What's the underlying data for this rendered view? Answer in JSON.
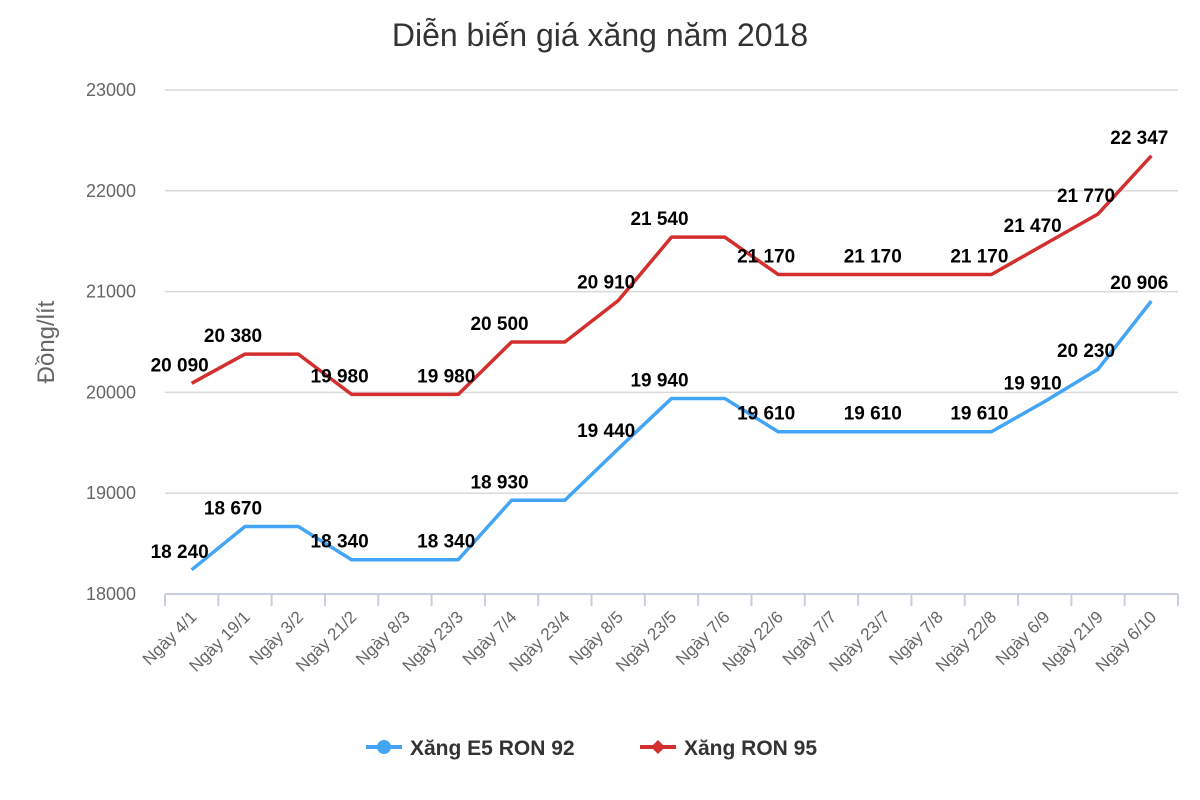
{
  "chart_data": {
    "type": "line",
    "title": "Diễn biến giá xăng năm 2018",
    "xlabel": "",
    "ylabel": "Đồng/lít",
    "ylim": [
      18000,
      23000
    ],
    "yticks": [
      18000,
      19000,
      20000,
      21000,
      22000,
      23000
    ],
    "grid": true,
    "legend": "bottom",
    "categories": [
      "Ngày 4/1",
      "Ngày 19/1",
      "Ngày 3/2",
      "Ngày 21/2",
      "Ngày 8/3",
      "Ngày 23/3",
      "Ngày 7/4",
      "Ngày 23/4",
      "Ngày 8/5",
      "Ngày 23/5",
      "Ngày 7/6",
      "Ngày 22/6",
      "Ngày 7/7",
      "Ngày 23/7",
      "Ngày 7/8",
      "Ngày 22/8",
      "Ngày 6/9",
      "Ngày 21/9",
      "Ngày 6/10"
    ],
    "series": [
      {
        "name": "Xăng E5 RON 92",
        "color": "#42a5f5",
        "marker": "circle",
        "values": [
          18240,
          18670,
          18670,
          18340,
          18340,
          18340,
          18930,
          18930,
          19440,
          19940,
          19940,
          19610,
          19610,
          19610,
          19610,
          19610,
          19910,
          20230,
          20906
        ],
        "labels": [
          "18 240",
          "18 670",
          null,
          "18 340",
          null,
          "18 340",
          "18 930",
          null,
          "19 440",
          "19 940",
          null,
          "19 610",
          null,
          "19 610",
          null,
          "19 610",
          "19 910",
          "20 230",
          "20 906"
        ]
      },
      {
        "name": "Xăng RON 95",
        "color": "#d32f2f",
        "marker": "diamond",
        "values": [
          20090,
          20380,
          20380,
          19980,
          19980,
          19980,
          20500,
          20500,
          20910,
          21540,
          21540,
          21170,
          21170,
          21170,
          21170,
          21170,
          21470,
          21770,
          22347
        ],
        "labels": [
          "20 090",
          "20 380",
          null,
          "19 980",
          null,
          "19 980",
          "20 500",
          null,
          "20 910",
          "21 540",
          null,
          "21 170",
          null,
          "21 170",
          null,
          "21 170",
          "21 470",
          "21 770",
          "22 347"
        ]
      }
    ]
  }
}
